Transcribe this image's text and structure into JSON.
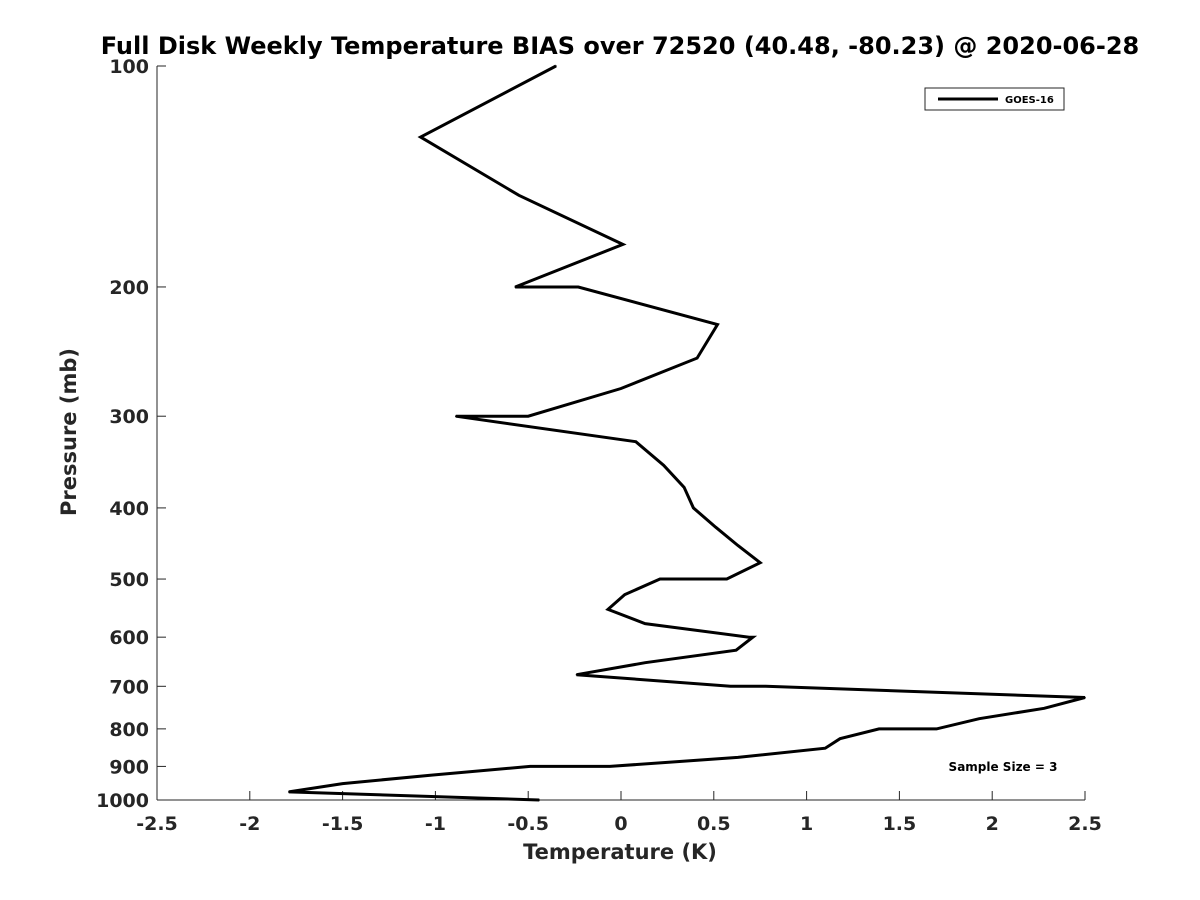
{
  "chart_data": {
    "type": "line",
    "title": "Full Disk Weekly Temperature BIAS over 72520 (40.48, -80.23) @ 2020-06-28",
    "xlabel": "Temperature (K)",
    "ylabel": "Pressure (mb)",
    "xlim": [
      -2.5,
      2.5
    ],
    "ylim": [
      100,
      1000
    ],
    "y_scale": "log",
    "y_reversed": true,
    "x_ticks": [
      -2.5,
      -2,
      -1.5,
      -1,
      -0.5,
      0,
      0.5,
      1,
      1.5,
      2,
      2.5
    ],
    "x_tick_labels": [
      "-2.5",
      "-2",
      "-1.5",
      "-1",
      "-0.5",
      "0",
      "0.5",
      "1",
      "1.5",
      "2",
      "2.5"
    ],
    "y_ticks": [
      100,
      200,
      300,
      400,
      500,
      600,
      700,
      800,
      900,
      1000
    ],
    "y_tick_labels": [
      "100",
      "200",
      "300",
      "400",
      "500",
      "600",
      "700",
      "800",
      "900",
      "1000"
    ],
    "grid": false,
    "legend_position": "top-right",
    "series": [
      {
        "name": "GOES-16",
        "color": "#000000",
        "points": [
          {
            "x": -0.35,
            "y": 100
          },
          {
            "x": -1.08,
            "y": 125
          },
          {
            "x": -0.55,
            "y": 150
          },
          {
            "x": 0.01,
            "y": 175
          },
          {
            "x": -0.57,
            "y": 200
          },
          {
            "x": -0.23,
            "y": 200
          },
          {
            "x": 0.52,
            "y": 225
          },
          {
            "x": 0.41,
            "y": 250
          },
          {
            "x": 0.0,
            "y": 275
          },
          {
            "x": -0.5,
            "y": 300
          },
          {
            "x": -0.89,
            "y": 300
          },
          {
            "x": 0.08,
            "y": 325
          },
          {
            "x": 0.23,
            "y": 350
          },
          {
            "x": 0.34,
            "y": 375
          },
          {
            "x": 0.39,
            "y": 400
          },
          {
            "x": 0.51,
            "y": 425
          },
          {
            "x": 0.63,
            "y": 450
          },
          {
            "x": 0.75,
            "y": 475
          },
          {
            "x": 0.57,
            "y": 500
          },
          {
            "x": 0.21,
            "y": 500
          },
          {
            "x": 0.02,
            "y": 525
          },
          {
            "x": -0.07,
            "y": 550
          },
          {
            "x": 0.13,
            "y": 575
          },
          {
            "x": 0.69,
            "y": 600
          },
          {
            "x": 0.71,
            "y": 600
          },
          {
            "x": 0.62,
            "y": 625
          },
          {
            "x": 0.13,
            "y": 650
          },
          {
            "x": -0.24,
            "y": 675
          },
          {
            "x": 0.59,
            "y": 700
          },
          {
            "x": 0.78,
            "y": 700
          },
          {
            "x": 2.5,
            "y": 725
          },
          {
            "x": 2.28,
            "y": 750
          },
          {
            "x": 1.93,
            "y": 775
          },
          {
            "x": 1.7,
            "y": 800
          },
          {
            "x": 1.39,
            "y": 800
          },
          {
            "x": 1.18,
            "y": 825
          },
          {
            "x": 1.1,
            "y": 850
          },
          {
            "x": 0.63,
            "y": 875
          },
          {
            "x": -0.06,
            "y": 900
          },
          {
            "x": -0.49,
            "y": 900
          },
          {
            "x": -1.02,
            "y": 925
          },
          {
            "x": -1.5,
            "y": 950
          },
          {
            "x": -1.79,
            "y": 975
          },
          {
            "x": -0.44,
            "y": 1000
          }
        ]
      }
    ],
    "annotations": [
      {
        "text": "Sample Size = 3"
      }
    ]
  }
}
